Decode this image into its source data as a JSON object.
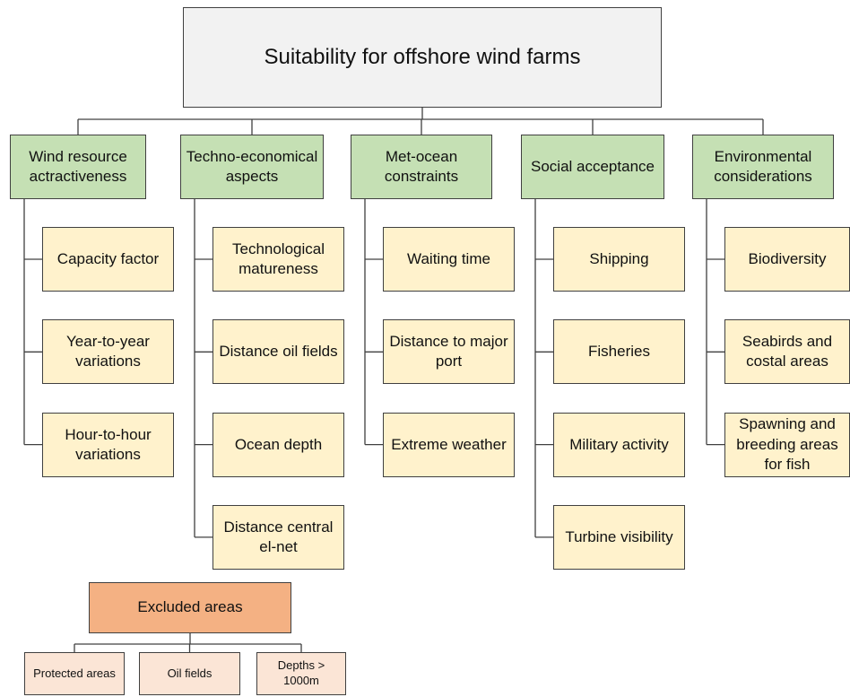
{
  "root": {
    "label": "Suitability for offshore wind farms"
  },
  "categories": [
    {
      "label": "Wind resource actractiveness",
      "children": [
        "Capacity factor",
        "Year-to-year variations",
        "Hour-to-hour variations"
      ]
    },
    {
      "label": "Techno-economical aspects",
      "children": [
        "Technological matureness",
        "Distance oil fields",
        "Ocean depth",
        "Distance central el-net"
      ]
    },
    {
      "label": "Met-ocean constraints",
      "children": [
        "Waiting time",
        "Distance to major port",
        "Extreme weather"
      ]
    },
    {
      "label": "Social acceptance",
      "children": [
        "Shipping",
        "Fisheries",
        "Military activity",
        "Turbine visibility"
      ]
    },
    {
      "label": "Environmental considerations",
      "children": [
        "Biodiversity",
        "Seabirds and costal areas",
        "Spawning and breeding areas for fish"
      ]
    }
  ],
  "excluded": {
    "label": "Excluded areas",
    "children": [
      "Protected areas",
      "Oil fields",
      "Depths > 1000m"
    ]
  }
}
